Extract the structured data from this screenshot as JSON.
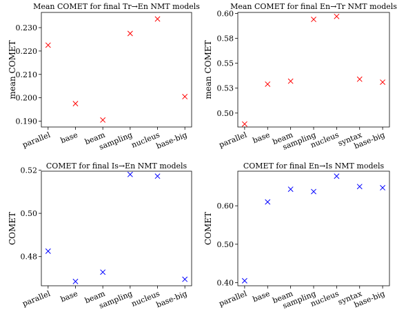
{
  "chart_data": [
    {
      "type": "scatter",
      "title": "Mean COMET for final Tr→En NMT models",
      "ylabel": "mean COMET",
      "xlabel": "",
      "categories": [
        "parallel",
        "base",
        "beam",
        "sampling",
        "nucleus",
        "base-big"
      ],
      "values": [
        0.2225,
        0.1975,
        0.1905,
        0.2275,
        0.2337,
        0.2005
      ],
      "yticks": [
        "0.190",
        "0.200",
        "0.210",
        "0.220",
        "0.230"
      ],
      "ytick_values": [
        0.19,
        0.2,
        0.21,
        0.22,
        0.23
      ],
      "ylim": [
        0.1875,
        0.2365
      ],
      "marker": "x",
      "color": "#ff0000",
      "grid": false
    },
    {
      "type": "scatter",
      "title": "Mean COMET for final En→Tr NMT models",
      "ylabel": "mean COMET",
      "xlabel": "",
      "categories": [
        "parallel",
        "base",
        "beam",
        "sampling",
        "nucleus",
        "syntax",
        "base-big"
      ],
      "values": [
        0.489,
        0.529,
        0.532,
        0.594,
        0.597,
        0.534,
        0.531
      ],
      "yticks": [
        "0.50",
        "0.53",
        "0.55",
        "0.58",
        "0.60"
      ],
      "ytick_values": [
        0.5,
        0.525,
        0.55,
        0.575,
        0.6
      ],
      "ylim": [
        0.486,
        0.601
      ],
      "marker": "x",
      "color": "#ff0000",
      "grid": false
    },
    {
      "type": "scatter",
      "title": "COMET for final Is→En NMT models",
      "ylabel": "COMET",
      "xlabel": "",
      "categories": [
        "parallel",
        "base",
        "beam",
        "sampling",
        "nucleus",
        "base-big"
      ],
      "values": [
        0.4825,
        0.4685,
        0.4728,
        0.518,
        0.5172,
        0.4695
      ],
      "yticks": [
        "0.48",
        "0.50",
        "0.52"
      ],
      "ytick_values": [
        0.48,
        0.5,
        0.52
      ],
      "ylim": [
        0.4665,
        0.5195
      ],
      "marker": "x",
      "color": "#0000ff",
      "grid": false
    },
    {
      "type": "scatter",
      "title": "COMET for final En→Is NMT models",
      "ylabel": "COMET",
      "xlabel": "",
      "categories": [
        "parallel",
        "base",
        "beam",
        "sampling",
        "nucleus",
        "syntax",
        "base-big"
      ],
      "values": [
        0.405,
        0.61,
        0.643,
        0.637,
        0.677,
        0.65,
        0.647
      ],
      "yticks": [
        "0.40",
        "0.50",
        "0.60"
      ],
      "ytick_values": [
        0.4,
        0.5,
        0.6
      ],
      "ylim": [
        0.392,
        0.69
      ],
      "marker": "x",
      "color": "#0000ff",
      "grid": false
    }
  ]
}
